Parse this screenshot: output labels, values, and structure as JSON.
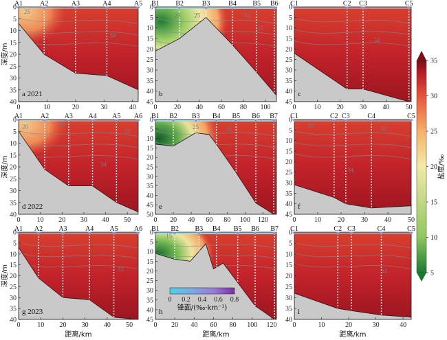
{
  "chart_data": {
    "type": "contour section",
    "ylabel": "深度/m",
    "xlabel": "距离/km",
    "colorbar": {
      "label": "盐度/‰",
      "ticks": [
        5,
        10,
        15,
        20,
        25,
        30,
        35
      ],
      "range": [
        5,
        35
      ],
      "colors": [
        "#1b7a33",
        "#8fc75e",
        "#f3eaa8",
        "#f6b46a",
        "#e8563b",
        "#b11a22",
        "#7a0f16"
      ]
    },
    "front_colorbar": {
      "label": "锋面/(‰·km⁻¹)",
      "ticks": [
        "0",
        "0.2",
        "0.4",
        "0.6",
        "0.8"
      ],
      "range": [
        0,
        0.8
      ]
    },
    "panels": [
      {
        "id": "a",
        "caption": "a 2021",
        "xlim": [
          0,
          42
        ],
        "xticks": [
          0,
          10,
          20,
          30,
          40
        ],
        "ylim": [
          0,
          40
        ],
        "yticks": [
          0,
          5,
          10,
          15,
          20,
          25,
          30,
          35,
          40
        ],
        "stations": [
          {
            "name": "A1",
            "x": 0
          },
          {
            "name": "A2",
            "x": 9
          },
          {
            "name": "A3",
            "x": 20
          },
          {
            "name": "A4",
            "x": 31
          },
          {
            "name": "A5",
            "x": 42
          }
        ],
        "bathymetry": [
          [
            0,
            7
          ],
          [
            9,
            20
          ],
          [
            20,
            28
          ],
          [
            31,
            29
          ],
          [
            42,
            35
          ]
        ],
        "contours": [
          {
            "label": "25",
            "x": 3,
            "y": 2
          },
          {
            "label": "34",
            "x": 33,
            "y": 12
          }
        ]
      },
      {
        "id": "b",
        "caption": "b",
        "xlim": [
          0,
          110
        ],
        "xticks": [
          0,
          20,
          40,
          60,
          80,
          100
        ],
        "ylim": [
          0,
          45
        ],
        "yticks": [
          0,
          5,
          10,
          15,
          20,
          25,
          30,
          35,
          40,
          45
        ],
        "stations": [
          {
            "name": "B1",
            "x": 0
          },
          {
            "name": "B2",
            "x": 22
          },
          {
            "name": "B3",
            "x": 46
          },
          {
            "name": "B4",
            "x": 70
          },
          {
            "name": "B5",
            "x": 92
          },
          {
            "name": "B6",
            "x": 108
          }
        ],
        "bathymetry": [
          [
            0,
            21
          ],
          [
            22,
            15
          ],
          [
            46,
            5
          ],
          [
            70,
            18
          ],
          [
            92,
            31
          ],
          [
            110,
            42
          ]
        ],
        "contours": [
          {
            "label": "20",
            "x": 20,
            "y": 4
          },
          {
            "label": "25",
            "x": 38,
            "y": 4
          },
          {
            "label": "32",
            "x": 83,
            "y": 4
          },
          {
            "label": "33",
            "x": 95,
            "y": 10
          }
        ]
      },
      {
        "id": "c",
        "caption": "c",
        "xlim": [
          0,
          51
        ],
        "xticks": [
          0,
          10,
          20,
          30,
          40,
          50
        ],
        "ylim": [
          0,
          45
        ],
        "yticks": [
          0,
          5,
          10,
          15,
          20,
          25,
          30,
          35,
          40,
          45
        ],
        "stations": [
          {
            "name": "C1",
            "x": 0
          },
          {
            "name": "C2",
            "x": 23
          },
          {
            "name": "C3",
            "x": 30
          },
          {
            "name": "C5",
            "x": 50
          }
        ],
        "bathymetry": [
          [
            0,
            22
          ],
          [
            23,
            39
          ],
          [
            30,
            39
          ],
          [
            50,
            45
          ]
        ],
        "contours": [
          {
            "label": "34",
            "x": 36,
            "y": 16
          }
        ]
      },
      {
        "id": "d",
        "caption": "d 2022",
        "xlim": [
          0,
          55
        ],
        "xticks": [
          0,
          10,
          20,
          30,
          40,
          50
        ],
        "ylim": [
          0,
          40
        ],
        "yticks": [
          0,
          5,
          10,
          15,
          20,
          25,
          30,
          35,
          40
        ],
        "stations": [
          {
            "name": "A1",
            "x": 0
          },
          {
            "name": "A2",
            "x": 12
          },
          {
            "name": "A3",
            "x": 23
          },
          {
            "name": "A4",
            "x": 34
          },
          {
            "name": "A5",
            "x": 45
          },
          {
            "name": "A6",
            "x": 55
          }
        ],
        "bathymetry": [
          [
            0,
            5
          ],
          [
            12,
            21
          ],
          [
            23,
            28
          ],
          [
            34,
            28
          ],
          [
            45,
            35
          ],
          [
            55,
            39
          ]
        ],
        "contours": [
          {
            "label": "20",
            "x": 3,
            "y": 3
          },
          {
            "label": "30",
            "x": 20,
            "y": 2
          },
          {
            "label": "32",
            "x": 50,
            "y": 5
          },
          {
            "label": "34",
            "x": 39,
            "y": 19
          }
        ]
      },
      {
        "id": "e",
        "caption": "e",
        "xlim": [
          0,
          135
        ],
        "xticks": [
          0,
          20,
          40,
          60,
          80,
          100,
          120
        ],
        "ylim": [
          0,
          50
        ],
        "yticks": [
          0,
          5,
          10,
          15,
          20,
          25,
          30,
          35,
          40,
          45,
          50
        ],
        "stations": [
          {
            "name": "B1",
            "x": 0
          },
          {
            "name": "B2",
            "x": 20
          },
          {
            "name": "B3",
            "x": 45
          },
          {
            "name": "B4",
            "x": 68
          },
          {
            "name": "B5",
            "x": 90
          },
          {
            "name": "B6",
            "x": 112
          },
          {
            "name": "B7",
            "x": 132
          }
        ],
        "bathymetry": [
          [
            0,
            13
          ],
          [
            20,
            14
          ],
          [
            45,
            7
          ],
          [
            60,
            8
          ],
          [
            68,
            13
          ],
          [
            90,
            28
          ],
          [
            112,
            44
          ],
          [
            132,
            50
          ]
        ],
        "contours": [
          {
            "label": "15",
            "x": 10,
            "y": 5
          },
          {
            "label": "25",
            "x": 45,
            "y": 4
          },
          {
            "label": "32",
            "x": 82,
            "y": 5
          }
        ]
      },
      {
        "id": "f",
        "caption": "f",
        "xlim": [
          0,
          50
        ],
        "xticks": [
          0,
          10,
          20,
          30,
          40,
          50
        ],
        "ylim": [
          0,
          45
        ],
        "yticks": [
          0,
          5,
          10,
          15,
          20,
          25,
          30,
          35,
          40,
          45
        ],
        "stations": [
          {
            "name": "C1",
            "x": 0
          },
          {
            "name": "C2",
            "x": 17
          },
          {
            "name": "C3",
            "x": 22
          },
          {
            "name": "C4",
            "x": 33
          },
          {
            "name": "C5",
            "x": 50
          }
        ],
        "bathymetry": [
          [
            0,
            31
          ],
          [
            17,
            37
          ],
          [
            22,
            40
          ],
          [
            33,
            42
          ],
          [
            50,
            41
          ]
        ],
        "contours": [
          {
            "label": "30",
            "x": 7,
            "y": 3
          },
          {
            "label": "32",
            "x": 38,
            "y": 4
          },
          {
            "label": "34",
            "x": 24,
            "y": 24
          }
        ]
      },
      {
        "id": "g",
        "caption": "g 2023",
        "xlim": [
          0,
          54
        ],
        "xticks": [
          0,
          10,
          20,
          30,
          40,
          50
        ],
        "ylim": [
          0,
          40
        ],
        "yticks": [
          0,
          5,
          10,
          15,
          20,
          25,
          30,
          35,
          40
        ],
        "stations": [
          {
            "name": "A1",
            "x": 0
          },
          {
            "name": "A2",
            "x": 9
          },
          {
            "name": "A3",
            "x": 20
          },
          {
            "name": "A4",
            "x": 32
          },
          {
            "name": "A5",
            "x": 43
          },
          {
            "name": "A6",
            "x": 54
          }
        ],
        "bathymetry": [
          [
            0,
            7
          ],
          [
            9,
            21
          ],
          [
            20,
            30
          ],
          [
            32,
            31
          ],
          [
            43,
            39
          ],
          [
            54,
            40
          ]
        ],
        "contours": [
          {
            "label": "33",
            "x": 46,
            "y": 17
          }
        ]
      },
      {
        "id": "h",
        "caption": "h",
        "xlim": [
          0,
          125
        ],
        "xticks": [
          0,
          20,
          40,
          60,
          80,
          100,
          120
        ],
        "ylim": [
          0,
          45
        ],
        "yticks": [
          0,
          5,
          10,
          15,
          20,
          25,
          30,
          35,
          40,
          45
        ],
        "stations": [
          {
            "name": "B1",
            "x": 0
          },
          {
            "name": "B2",
            "x": 20
          },
          {
            "name": "B3",
            "x": 45
          },
          {
            "name": "B4",
            "x": 63
          },
          {
            "name": "B5",
            "x": 85
          },
          {
            "name": "B6",
            "x": 103
          },
          {
            "name": "B7",
            "x": 123
          }
        ],
        "bathymetry": [
          [
            0,
            11
          ],
          [
            20,
            14
          ],
          [
            36,
            15
          ],
          [
            52,
            6
          ],
          [
            60,
            19
          ],
          [
            70,
            16
          ],
          [
            85,
            26
          ],
          [
            103,
            38
          ],
          [
            123,
            45
          ]
        ],
        "contours": [
          {
            "label": "15",
            "x": 14,
            "y": 2
          }
        ]
      },
      {
        "id": "i",
        "caption": "i",
        "xlim": [
          0,
          43
        ],
        "xticks": [
          0,
          10,
          20,
          30,
          40
        ],
        "ylim": [
          0,
          40
        ],
        "yticks": [
          0,
          5,
          10,
          15,
          20,
          25,
          30,
          35,
          40
        ],
        "stations": [
          {
            "name": "C1",
            "x": 0
          },
          {
            "name": "C2",
            "x": 16
          },
          {
            "name": "C3",
            "x": 21
          },
          {
            "name": "C4",
            "x": 32
          },
          {
            "name": "C5",
            "x": 43
          }
        ],
        "bathymetry": [
          [
            0,
            28
          ],
          [
            16,
            35
          ],
          [
            21,
            36
          ],
          [
            32,
            38
          ],
          [
            43,
            39
          ]
        ],
        "contours": [
          {
            "label": "34",
            "x": 33,
            "y": 18
          }
        ]
      }
    ]
  }
}
